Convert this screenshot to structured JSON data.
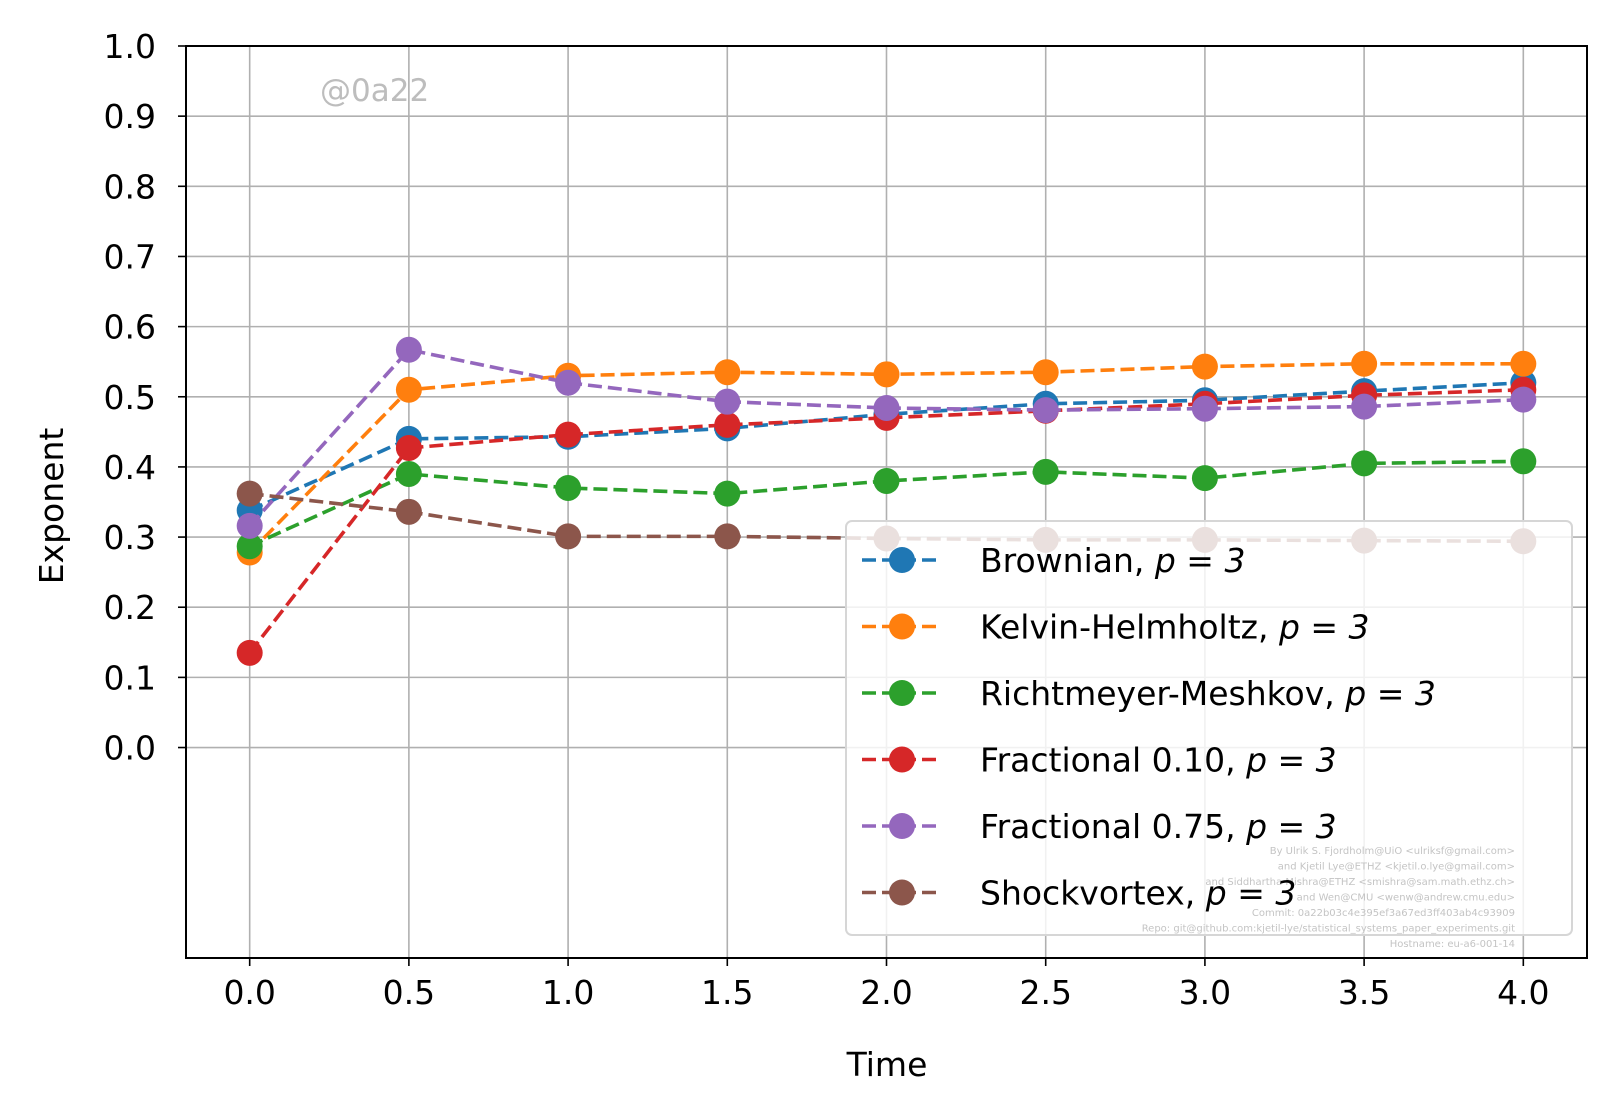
{
  "chart_data": {
    "type": "line",
    "title": "",
    "xlabel": "Time",
    "ylabel": "Exponent",
    "xlim": [
      -0.2,
      4.2
    ],
    "ylim": [
      -0.3,
      1.0
    ],
    "xticks": [
      "0.0",
      "0.5",
      "1.0",
      "1.5",
      "2.0",
      "2.5",
      "3.0",
      "3.5",
      "4.0"
    ],
    "yticks": [
      "0.0",
      "0.1",
      "0.2",
      "0.3",
      "0.4",
      "0.5",
      "0.6",
      "0.7",
      "0.8",
      "0.9",
      "1.0"
    ],
    "grid": true,
    "legend_position": "lower-right",
    "x": [
      0.0,
      0.5,
      1.0,
      1.5,
      2.0,
      2.5,
      3.0,
      3.5,
      4.0
    ],
    "series": [
      {
        "name": "Brownian, ",
        "name_math": "p = 3",
        "color": "#1f77b4",
        "values": [
          0.338,
          0.44,
          0.443,
          0.455,
          0.475,
          0.49,
          0.495,
          0.508,
          0.52
        ]
      },
      {
        "name": "Kelvin-Helmholtz, ",
        "name_math": "p = 3",
        "color": "#ff7f0e",
        "values": [
          0.278,
          0.51,
          0.53,
          0.535,
          0.532,
          0.535,
          0.543,
          0.547,
          0.547
        ]
      },
      {
        "name": "Richtmeyer-Meshkov, ",
        "name_math": "p = 3",
        "color": "#2ca02c",
        "values": [
          0.287,
          0.39,
          0.37,
          0.362,
          0.38,
          0.393,
          0.384,
          0.405,
          0.408
        ]
      },
      {
        "name": "Fractional 0.10, ",
        "name_math": "p = 3",
        "color": "#d62728",
        "values": [
          0.135,
          0.427,
          0.446,
          0.46,
          0.47,
          0.48,
          0.49,
          0.502,
          0.51
        ]
      },
      {
        "name": "Fractional 0.75, ",
        "name_math": "p = 3",
        "color": "#9467bd",
        "values": [
          0.316,
          0.567,
          0.52,
          0.493,
          0.484,
          0.481,
          0.483,
          0.486,
          0.496
        ]
      },
      {
        "name": "Shockvortex, ",
        "name_math": "p = 3",
        "color": "#8c564b",
        "values": [
          0.362,
          0.336,
          0.301,
          0.301,
          0.298,
          0.296,
          0.296,
          0.295,
          0.294
        ]
      }
    ],
    "annotations": {
      "watermark": "@0a22",
      "credits": [
        "By Ulrik S. Fjordholm@UiO <ulriksf@gmail.com>",
        "and Kjetil Lye@ETHZ <kjetil.o.lye@gmail.com>",
        "and Siddhartha Mishra@ETHZ <smishra@sam.math.ethz.ch>",
        "and Wen@CMU <wenw@andrew.cmu.edu>",
        "Commit: 0a22b03c4e395ef3a67ed3ff403ab4c93909",
        "Repo: git@github.com:kjetil-lye/statistical_systems_paper_experiments.git",
        "Hostname: eu-a6-001-14"
      ]
    }
  }
}
